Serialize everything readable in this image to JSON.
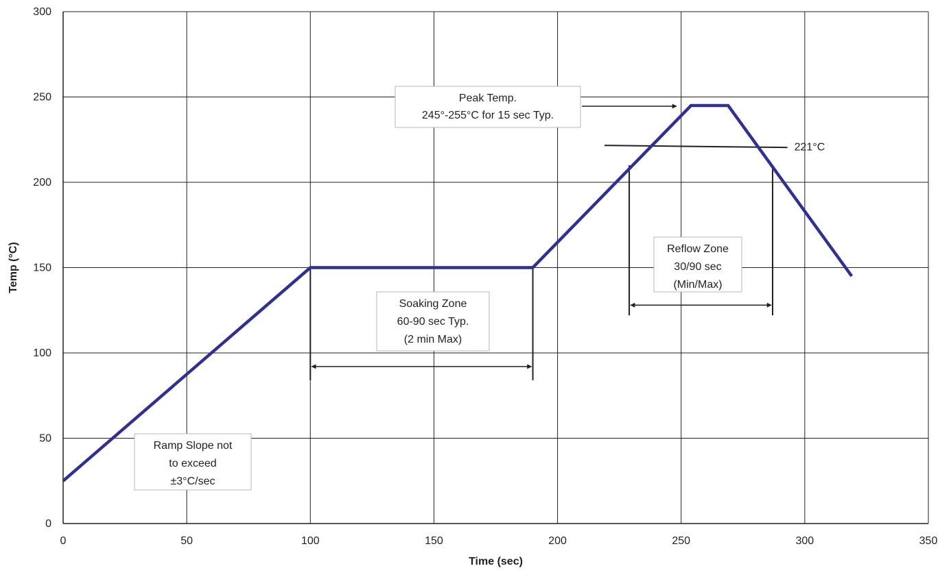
{
  "chart_data": {
    "type": "line",
    "xlabel": "Time (sec)",
    "ylabel": "Temp (°C)",
    "xlim": [
      0,
      350
    ],
    "ylim": [
      0,
      300
    ],
    "xticks": [
      0,
      50,
      100,
      150,
      200,
      250,
      300,
      350
    ],
    "yticks": [
      0,
      50,
      100,
      150,
      200,
      250,
      300
    ],
    "grid": true,
    "line_color": "#2e3192",
    "series": [
      {
        "x": [
          0,
          100,
          190,
          254,
          269,
          319
        ],
        "values": [
          25,
          150,
          150,
          245,
          245,
          145
        ]
      }
    ],
    "reference_line": {
      "label": "221°C",
      "value": 221,
      "x_range": [
        219,
        293
      ]
    },
    "annotations": [
      {
        "id": "ramp",
        "lines": [
          "Ramp Slope not",
          "to exceed",
          "±3°C/sec"
        ]
      },
      {
        "id": "soak",
        "lines": [
          "Soaking Zone",
          "60-90 sec Typ.",
          "(2 min Max)"
        ],
        "span": [
          100,
          190
        ]
      },
      {
        "id": "reflow",
        "lines": [
          "Reflow Zone",
          "30/90 sec",
          "(Min/Max)"
        ],
        "span": [
          229,
          287
        ]
      },
      {
        "id": "peak",
        "lines": [
          "Peak Temp.",
          "245°-255°C for 15 sec Typ."
        ]
      }
    ]
  }
}
